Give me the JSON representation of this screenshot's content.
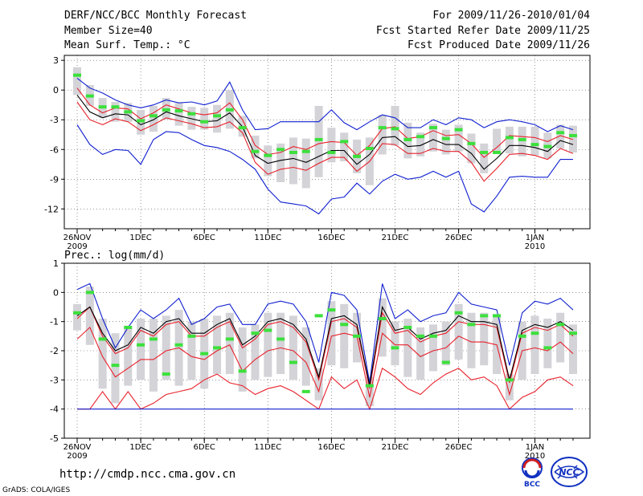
{
  "header": {
    "title": "DERF/NCC/BCC Monthly Forecast",
    "member_size": "Member Size=40",
    "variable": "Mean Surf. Temp.: °C",
    "forecast_period": "For 2009/11/26-2010/01/04",
    "started_date": "Fcst Started Refer Date 2009/11/25",
    "produced_date": "Fcst Produced Date 2009/11/26"
  },
  "footer": {
    "url": "http://cmdp.ncc.cma.gov.cn",
    "grads_credit": "GrADS: COLA/IGES",
    "logo_bcc": "BCC",
    "logo_ncc": "NCC"
  },
  "colors": {
    "box": "#d3d3d8",
    "median": "#000000",
    "inner": "#e8202a",
    "outer": "#1020d0",
    "mark": "#3ce03c"
  },
  "chart_data": [
    {
      "type": "line",
      "title": "Mean Surf. Temp.: °C",
      "x": [
        "26NOV",
        "27NOV",
        "28NOV",
        "29NOV",
        "30NOV",
        "1DEC",
        "2DEC",
        "3DEC",
        "4DEC",
        "5DEC",
        "6DEC",
        "7DEC",
        "8DEC",
        "9DEC",
        "10DEC",
        "11DEC",
        "12DEC",
        "13DEC",
        "14DEC",
        "15DEC",
        "16DEC",
        "17DEC",
        "18DEC",
        "19DEC",
        "20DEC",
        "21DEC",
        "22DEC",
        "23DEC",
        "24DEC",
        "25DEC",
        "26DEC",
        "27DEC",
        "28DEC",
        "29DEC",
        "30DEC",
        "31DEC",
        "1JAN",
        "2JAN",
        "3JAN",
        "4JAN"
      ],
      "x_ticks": [
        {
          "index": 0,
          "label": "26NOV",
          "sub": "2009"
        },
        {
          "index": 5,
          "label": "1DEC",
          "sub": ""
        },
        {
          "index": 10,
          "label": "6DEC",
          "sub": ""
        },
        {
          "index": 15,
          "label": "11DEC",
          "sub": ""
        },
        {
          "index": 20,
          "label": "16DEC",
          "sub": ""
        },
        {
          "index": 25,
          "label": "21DEC",
          "sub": ""
        },
        {
          "index": 30,
          "label": "26DEC",
          "sub": ""
        },
        {
          "index": 36,
          "label": "1JAN",
          "sub": "2010"
        }
      ],
      "y_ticks": [
        3,
        0,
        -3,
        -6,
        -9,
        -12
      ],
      "ylim": [
        -14,
        3.5
      ],
      "grid": true,
      "series": [
        {
          "name": "outer_upper",
          "color_key": "outer",
          "values": [
            1.2,
            0.2,
            -0.3,
            -1.0,
            -1.5,
            -1.8,
            -1.5,
            -1.0,
            -1.3,
            -1.2,
            -1.5,
            -1.1,
            0.8,
            -2.0,
            -4.0,
            -3.9,
            -3.2,
            -3.2,
            -3.2,
            -3.2,
            -2.0,
            -3.3,
            -4.0,
            -3.2,
            -2.5,
            -2.8,
            -3.8,
            -3.8,
            -3.0,
            -3.5,
            -2.8,
            -3.0,
            -3.8,
            -3.2,
            -3.0,
            -3.2,
            -3.5,
            -4.2,
            -3.6,
            -4.0
          ]
        },
        {
          "name": "outer_lower",
          "color_key": "outer",
          "values": [
            -3.5,
            -5.5,
            -6.5,
            -6.0,
            -6.1,
            -7.5,
            -5.0,
            -4.2,
            -4.3,
            -5.0,
            -5.6,
            -5.8,
            -6.2,
            -7.0,
            -8.0,
            -10.0,
            -11.3,
            -11.5,
            -11.7,
            -12.5,
            -11.0,
            -10.8,
            -9.4,
            -10.5,
            -9.2,
            -8.5,
            -9.0,
            -8.8,
            -8.2,
            -8.8,
            -8.2,
            -11.5,
            -12.3,
            -10.7,
            -8.8,
            -8.7,
            -8.8,
            -8.8,
            -7.0,
            -7.0
          ]
        },
        {
          "name": "inner_upper",
          "color_key": "inner",
          "values": [
            0.2,
            -1.5,
            -2.3,
            -1.8,
            -1.9,
            -2.9,
            -2.3,
            -1.5,
            -1.9,
            -2.3,
            -2.5,
            -2.3,
            -1.3,
            -3.0,
            -5.6,
            -6.5,
            -6.3,
            -5.7,
            -6.0,
            -5.4,
            -5.2,
            -5.3,
            -6.6,
            -5.6,
            -3.9,
            -3.7,
            -4.9,
            -4.7,
            -4.1,
            -4.6,
            -4.5,
            -5.4,
            -6.8,
            -5.8,
            -4.6,
            -4.7,
            -4.8,
            -5.2,
            -4.6,
            -5.0
          ]
        },
        {
          "name": "median",
          "color_key": "median",
          "values": [
            -0.5,
            -2.2,
            -2.8,
            -2.4,
            -2.5,
            -3.5,
            -3.0,
            -2.2,
            -2.6,
            -2.9,
            -3.2,
            -3.1,
            -2.3,
            -3.7,
            -6.6,
            -7.4,
            -7.1,
            -6.9,
            -7.3,
            -6.7,
            -6.1,
            -6.1,
            -7.5,
            -6.5,
            -4.8,
            -4.7,
            -5.7,
            -5.6,
            -5.0,
            -5.5,
            -5.5,
            -6.4,
            -8.0,
            -6.9,
            -5.6,
            -5.6,
            -5.8,
            -6.2,
            -5.1,
            -5.5
          ]
        },
        {
          "name": "inner_lower",
          "color_key": "inner",
          "values": [
            -1.2,
            -3.0,
            -3.5,
            -2.9,
            -3.2,
            -4.1,
            -3.5,
            -2.8,
            -3.1,
            -3.4,
            -3.8,
            -3.7,
            -3.2,
            -4.3,
            -7.3,
            -8.5,
            -8.0,
            -7.8,
            -8.1,
            -7.4,
            -6.8,
            -6.8,
            -8.2,
            -7.2,
            -5.4,
            -5.5,
            -6.4,
            -6.4,
            -5.9,
            -6.2,
            -6.2,
            -7.3,
            -9.2,
            -7.9,
            -6.5,
            -6.4,
            -6.6,
            -7.0,
            -5.9,
            -6.4
          ]
        }
      ],
      "box_top": [
        2.3,
        0.5,
        -0.8,
        -1.2,
        -1.3,
        -2.0,
        -1.6,
        -0.8,
        -1.3,
        -1.7,
        -1.8,
        -1.5,
        0.0,
        -2.6,
        -4.6,
        -5.6,
        -5.4,
        -4.8,
        -4.9,
        -1.6,
        -3.8,
        -4.3,
        -5.0,
        -4.8,
        -2.5,
        -1.6,
        -3.3,
        -4.3,
        -3.4,
        -4.0,
        -3.5,
        -4.4,
        -5.4,
        -3.9,
        -3.7,
        -3.7,
        -3.7,
        -4.3,
        -3.5,
        -3.6
      ],
      "box_bottom": [
        -0.5,
        -1.6,
        -2.8,
        -3.2,
        -3.2,
        -4.5,
        -4.2,
        -3.0,
        -3.6,
        -4.0,
        -4.0,
        -4.3,
        -3.9,
        -4.7,
        -6.9,
        -8.7,
        -9.3,
        -9.5,
        -9.9,
        -8.8,
        -7.3,
        -7.2,
        -8.4,
        -9.6,
        -6.5,
        -5.6,
        -6.9,
        -6.7,
        -6.2,
        -6.5,
        -6.2,
        -7.4,
        -8.4,
        -6.2,
        -6.4,
        -6.7,
        -6.6,
        -6.9,
        -5.9,
        -6.3
      ],
      "observed": [
        1.5,
        -0.6,
        -1.7,
        -1.7,
        -2.2,
        -3.1,
        -2.6,
        -2.0,
        -2.1,
        -2.4,
        -3.2,
        -2.6,
        -2.0,
        -3.8,
        -6.2,
        -6.6,
        -6.0,
        -6.3,
        -6.2,
        -5.0,
        -6.3,
        -5.2,
        -6.7,
        -5.9,
        -3.8,
        -3.9,
        -5.0,
        -4.7,
        -3.8,
        -4.9,
        -4.0,
        -5.4,
        -6.3,
        -6.3,
        -4.8,
        -5.0,
        -5.5,
        -5.7,
        -4.3,
        -4.6
      ]
    },
    {
      "type": "line",
      "title": "Prec.: log(mm/d)",
      "x": [
        "26NOV",
        "27NOV",
        "28NOV",
        "29NOV",
        "30NOV",
        "1DEC",
        "2DEC",
        "3DEC",
        "4DEC",
        "5DEC",
        "6DEC",
        "7DEC",
        "8DEC",
        "9DEC",
        "10DEC",
        "11DEC",
        "12DEC",
        "13DEC",
        "14DEC",
        "15DEC",
        "16DEC",
        "17DEC",
        "18DEC",
        "19DEC",
        "20DEC",
        "21DEC",
        "22DEC",
        "23DEC",
        "24DEC",
        "25DEC",
        "26DEC",
        "27DEC",
        "28DEC",
        "29DEC",
        "30DEC",
        "31DEC",
        "1JAN",
        "2JAN",
        "3JAN",
        "4JAN"
      ],
      "x_ticks": [
        {
          "index": 0,
          "label": "26NOV",
          "sub": "2009"
        },
        {
          "index": 5,
          "label": "1DEC",
          "sub": ""
        },
        {
          "index": 10,
          "label": "6DEC",
          "sub": ""
        },
        {
          "index": 15,
          "label": "11DEC",
          "sub": ""
        },
        {
          "index": 20,
          "label": "16DEC",
          "sub": ""
        },
        {
          "index": 25,
          "label": "21DEC",
          "sub": ""
        },
        {
          "index": 30,
          "label": "26DEC",
          "sub": ""
        },
        {
          "index": 36,
          "label": "1JAN",
          "sub": "2010"
        }
      ],
      "y_ticks": [
        1,
        0,
        -1,
        -2,
        -3,
        -4,
        -5
      ],
      "ylim": [
        -5,
        1
      ],
      "grid": true,
      "series": [
        {
          "name": "outer_upper",
          "color_key": "outer",
          "values": [
            0.1,
            0.3,
            -0.9,
            -1.9,
            -1.2,
            -0.6,
            -0.9,
            -0.6,
            -0.2,
            -1.1,
            -0.9,
            -0.5,
            -0.4,
            -1.1,
            -1.1,
            -0.4,
            -0.3,
            -0.4,
            -1.0,
            -2.4,
            0.0,
            -0.1,
            -0.6,
            -3.1,
            0.3,
            -0.9,
            -0.6,
            -1.0,
            -0.8,
            -0.7,
            0.0,
            -0.4,
            -0.5,
            -0.6,
            -2.5,
            -0.7,
            -0.3,
            -0.4,
            -0.2,
            -0.6
          ]
        },
        {
          "name": "inner_upper",
          "color_key": "inner",
          "values": [
            -0.9,
            -0.5,
            -1.5,
            -2.1,
            -1.9,
            -1.3,
            -1.5,
            -1.1,
            -1.0,
            -1.5,
            -1.5,
            -1.2,
            -1.0,
            -1.9,
            -1.6,
            -1.1,
            -1.0,
            -1.2,
            -1.7,
            -3.0,
            -1.0,
            -0.9,
            -1.2,
            -3.3,
            -0.7,
            -1.4,
            -1.3,
            -1.7,
            -1.5,
            -1.4,
            -1.0,
            -1.1,
            -1.1,
            -1.2,
            -3.1,
            -1.4,
            -1.2,
            -1.3,
            -1.1,
            -1.5
          ]
        },
        {
          "name": "median",
          "color_key": "median",
          "values": [
            -0.8,
            -0.5,
            -1.4,
            -2.0,
            -1.8,
            -1.2,
            -1.4,
            -1.0,
            -0.9,
            -1.4,
            -1.4,
            -1.1,
            -0.9,
            -1.8,
            -1.5,
            -1.0,
            -0.9,
            -1.1,
            -1.6,
            -2.9,
            -0.9,
            -0.8,
            -1.1,
            -3.2,
            -0.5,
            -1.3,
            -1.2,
            -1.6,
            -1.4,
            -1.3,
            -0.8,
            -1.0,
            -1.0,
            -1.1,
            -3.0,
            -1.3,
            -1.1,
            -1.2,
            -1.0,
            -1.3
          ]
        },
        {
          "name": "inner_lower",
          "color_key": "inner",
          "values": [
            -1.6,
            -1.2,
            -2.2,
            -2.9,
            -2.6,
            -2.3,
            -2.3,
            -2.0,
            -1.9,
            -2.2,
            -2.3,
            -2.0,
            -1.8,
            -2.7,
            -2.3,
            -2.0,
            -1.9,
            -2.0,
            -2.4,
            -3.4,
            -1.5,
            -1.4,
            -1.5,
            -3.6,
            -1.4,
            -1.8,
            -1.8,
            -2.2,
            -2.0,
            -1.9,
            -1.5,
            -1.7,
            -1.7,
            -1.8,
            -3.5,
            -2.0,
            -1.9,
            -2.0,
            -1.7,
            -2.1
          ]
        },
        {
          "name": "inner_lowest",
          "color_key": "inner",
          "values": [
            -4.0,
            -4.0,
            -3.4,
            -4.0,
            -3.4,
            -4.0,
            -3.8,
            -3.5,
            -3.4,
            -3.3,
            -3.0,
            -2.8,
            -3.1,
            -3.2,
            -3.5,
            -3.3,
            -3.2,
            -3.4,
            -3.7,
            -4.0,
            -2.9,
            -3.3,
            -3.0,
            -4.0,
            -2.6,
            -2.9,
            -3.3,
            -3.5,
            -3.1,
            -2.8,
            -2.6,
            -3.0,
            -2.9,
            -3.2,
            -4.0,
            -3.6,
            -3.4,
            -3.0,
            -2.9,
            -3.2
          ]
        },
        {
          "name": "outer_lower",
          "color_key": "outer",
          "values": [
            -4.0,
            -4.0,
            -4.0,
            -4.0,
            -4.0,
            -4.0,
            -4.0,
            -4.0,
            -4.0,
            -4.0,
            -4.0,
            -4.0,
            -4.0,
            -4.0,
            -4.0,
            -4.0,
            -4.0,
            -4.0,
            -4.0,
            -4.0,
            -4.0,
            -4.0,
            -4.0,
            -4.0,
            -4.0,
            -4.0,
            -4.0,
            -4.0,
            -4.0,
            -4.0,
            -4.0,
            -4.0,
            -4.0,
            -4.0,
            -4.0,
            -4.0,
            -4.0,
            -4.0,
            -4.0,
            -4.0
          ]
        }
      ],
      "box_top": [
        -0.4,
        0.2,
        -0.9,
        -1.4,
        -1.2,
        -0.9,
        -0.9,
        -0.8,
        -0.6,
        -1.0,
        -0.9,
        -0.8,
        -0.7,
        -1.2,
        -1.1,
        -0.7,
        -0.7,
        -0.8,
        -1.2,
        -2.6,
        -0.3,
        -0.4,
        -0.7,
        -2.9,
        -0.2,
        -1.0,
        -0.9,
        -1.2,
        -1.1,
        -1.0,
        -0.4,
        -0.7,
        -0.7,
        -0.8,
        -2.8,
        -1.0,
        -0.8,
        -0.9,
        -0.7,
        -1.1
      ],
      "box_bottom": [
        -1.3,
        -1.8,
        -3.3,
        -3.8,
        -3.2,
        -3.0,
        -3.4,
        -3.0,
        -3.2,
        -3.0,
        -3.3,
        -2.8,
        -2.8,
        -3.4,
        -3.0,
        -2.9,
        -2.8,
        -3.0,
        -3.2,
        -3.7,
        -2.5,
        -2.6,
        -2.4,
        -3.9,
        -2.2,
        -2.5,
        -2.9,
        -3.0,
        -2.7,
        -2.5,
        -2.3,
        -2.6,
        -2.5,
        -2.8,
        -3.7,
        -3.0,
        -2.8,
        -2.6,
        -2.4,
        -2.8
      ],
      "observed": [
        -0.7,
        0.0,
        -1.6,
        -2.5,
        -1.2,
        -1.8,
        -1.6,
        -2.8,
        -1.8,
        -1.5,
        -2.1,
        -1.9,
        -1.6,
        -2.7,
        -1.4,
        -1.3,
        -1.6,
        -2.4,
        -3.4,
        -0.8,
        -0.6,
        -1.1,
        -1.5,
        -3.2,
        -0.9,
        -1.9,
        -1.2,
        -1.5,
        -1.5,
        -2.4,
        -0.7,
        -1.1,
        -0.8,
        -0.8,
        -3.0,
        -1.5,
        -1.4,
        -1.9,
        -1.1,
        -1.4
      ]
    }
  ]
}
